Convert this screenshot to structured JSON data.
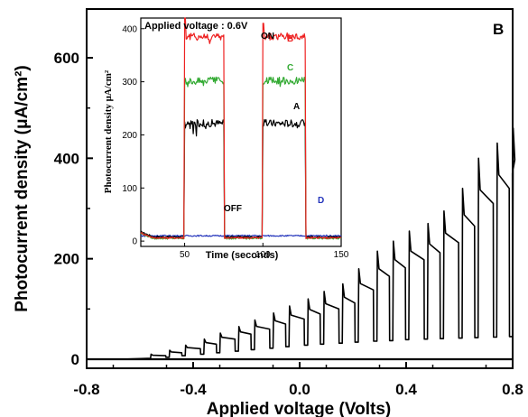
{
  "chart_data": [
    {
      "type": "line",
      "panel_label": "B",
      "xlabel": "Applied voltage (Volts)",
      "ylabel": "Photocurrent density (μA/cm²)",
      "xlim": [
        -0.8,
        0.8
      ],
      "ylim": [
        0,
        700
      ],
      "x_ticks": [
        -0.8,
        -0.4,
        0.0,
        0.4,
        0.8
      ],
      "x_tick_labels": [
        "-0.8",
        "-0.4",
        "0.0",
        "0.4",
        "0.8"
      ],
      "y_ticks": [
        0,
        200,
        400,
        600
      ],
      "y_tick_labels": [
        "0",
        "200",
        "400",
        "600"
      ],
      "grid": false,
      "baseline": 0,
      "dark_current_start_x": -0.67,
      "light_steps": {
        "on_voltage": [
          -0.56,
          -0.49,
          -0.43,
          -0.36,
          -0.3,
          -0.23,
          -0.17,
          -0.1,
          -0.04,
          0.03,
          0.09,
          0.16,
          0.22,
          0.29,
          0.35,
          0.41,
          0.48,
          0.54,
          0.61,
          0.67,
          0.74,
          0.8
        ],
        "dark_current": [
          2,
          4,
          7,
          10,
          13,
          16,
          19,
          22,
          25,
          28,
          30,
          32,
          34,
          36,
          37,
          39,
          40,
          41,
          42,
          43,
          44,
          45
        ],
        "peak_photocurrent": [
          10,
          18,
          28,
          40,
          52,
          65,
          78,
          92,
          106,
          120,
          135,
          150,
          180,
          215,
          235,
          255,
          270,
          295,
          340,
          400,
          430,
          460
        ],
        "plateau_photocurrent": [
          7,
          13,
          21,
          30,
          40,
          50,
          60,
          70,
          80,
          90,
          100,
          112,
          138,
          165,
          182,
          198,
          212,
          232,
          265,
          310,
          340,
          370
        ]
      }
    },
    {
      "type": "line",
      "title": "Applied voltage : 0.6V",
      "xlabel": "Time (seconds)",
      "ylabel": "Photocurrent density μA/cm²",
      "xlim": [
        22,
        150
      ],
      "ylim": [
        -10,
        420
      ],
      "x_ticks": [
        50,
        100,
        150
      ],
      "x_tick_labels": [
        "50",
        "100",
        "150"
      ],
      "y_ticks": [
        0,
        100,
        200,
        300,
        400
      ],
      "y_tick_labels": [
        "0",
        "100",
        "200",
        "300",
        "400"
      ],
      "annotations": [
        "ON",
        "OFF"
      ],
      "light_on_intervals": [
        [
          50,
          75
        ],
        [
          100,
          127
        ]
      ],
      "series": [
        {
          "name": "A",
          "color": "#000000",
          "on_level": 222,
          "off_level": 8
        },
        {
          "name": "B",
          "color": "#ee2222",
          "on_level": 385,
          "off_level": 6
        },
        {
          "name": "C",
          "color": "#33aa33",
          "on_level": 302,
          "off_level": 5
        },
        {
          "name": "D",
          "color": "#2233bb",
          "on_level": 10,
          "off_level": 10
        }
      ]
    }
  ]
}
